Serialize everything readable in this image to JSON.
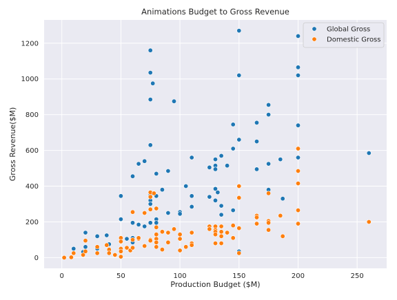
{
  "chart_data": {
    "type": "scatter",
    "title": "Animations Budget to Gross Revenue",
    "xlabel": "Production Budget ($M)",
    "ylabel": "Gross Revenue($M)",
    "xlim": [
      -15,
      275
    ],
    "ylim": [
      -60,
      1330
    ],
    "xticks": [
      0,
      50,
      100,
      150,
      200,
      250
    ],
    "yticks": [
      0,
      200,
      400,
      600,
      800,
      1000,
      1200
    ],
    "grid": true,
    "legend_position": "top-right",
    "series": [
      {
        "name": "Global Gross",
        "color": "#1f77b4",
        "points": [
          [
            10,
            50
          ],
          [
            18,
            32
          ],
          [
            20,
            140
          ],
          [
            20,
            60
          ],
          [
            30,
            120
          ],
          [
            30,
            50
          ],
          [
            38,
            125
          ],
          [
            40,
            75
          ],
          [
            50,
            345
          ],
          [
            50,
            215
          ],
          [
            55,
            105
          ],
          [
            60,
            455
          ],
          [
            60,
            195
          ],
          [
            60,
            110
          ],
          [
            60,
            85
          ],
          [
            65,
            525
          ],
          [
            65,
            185
          ],
          [
            70,
            540
          ],
          [
            70,
            175
          ],
          [
            75,
            1160
          ],
          [
            75,
            1035
          ],
          [
            75,
            885
          ],
          [
            75,
            630
          ],
          [
            75,
            350
          ],
          [
            75,
            320
          ],
          [
            75,
            300
          ],
          [
            75,
            270
          ],
          [
            75,
            195
          ],
          [
            77,
            975
          ],
          [
            80,
            470
          ],
          [
            80,
            345
          ],
          [
            80,
            275
          ],
          [
            80,
            215
          ],
          [
            80,
            195
          ],
          [
            85,
            380
          ],
          [
            90,
            485
          ],
          [
            90,
            250
          ],
          [
            95,
            875
          ],
          [
            100,
            255
          ],
          [
            100,
            245
          ],
          [
            105,
            400
          ],
          [
            110,
            560
          ],
          [
            110,
            345
          ],
          [
            110,
            285
          ],
          [
            125,
            505
          ],
          [
            125,
            340
          ],
          [
            130,
            550
          ],
          [
            130,
            515
          ],
          [
            130,
            495
          ],
          [
            130,
            385
          ],
          [
            130,
            320
          ],
          [
            130,
            155
          ],
          [
            130,
            130
          ],
          [
            132,
            365
          ],
          [
            135,
            570
          ],
          [
            135,
            290
          ],
          [
            135,
            240
          ],
          [
            140,
            515
          ],
          [
            145,
            745
          ],
          [
            145,
            610
          ],
          [
            145,
            265
          ],
          [
            150,
            1270
          ],
          [
            150,
            1020
          ],
          [
            150,
            660
          ],
          [
            150,
            35
          ],
          [
            165,
            755
          ],
          [
            165,
            650
          ],
          [
            165,
            495
          ],
          [
            175,
            855
          ],
          [
            175,
            800
          ],
          [
            175,
            525
          ],
          [
            175,
            380
          ],
          [
            185,
            550
          ],
          [
            187,
            330
          ],
          [
            200,
            1240
          ],
          [
            200,
            1065
          ],
          [
            200,
            1020
          ],
          [
            200,
            740
          ],
          [
            200,
            560
          ],
          [
            260,
            585
          ]
        ]
      },
      {
        "name": "Domestic Gross",
        "color": "#ff7f0e",
        "points": [
          [
            2,
            0
          ],
          [
            8,
            2
          ],
          [
            10,
            25
          ],
          [
            18,
            15
          ],
          [
            20,
            95
          ],
          [
            20,
            35
          ],
          [
            30,
            60
          ],
          [
            30,
            25
          ],
          [
            38,
            70
          ],
          [
            40,
            45
          ],
          [
            40,
            25
          ],
          [
            45,
            15
          ],
          [
            50,
            110
          ],
          [
            50,
            90
          ],
          [
            50,
            50
          ],
          [
            50,
            35
          ],
          [
            50,
            5
          ],
          [
            55,
            55
          ],
          [
            58,
            40
          ],
          [
            60,
            255
          ],
          [
            60,
            100
          ],
          [
            60,
            55
          ],
          [
            65,
            105
          ],
          [
            65,
            110
          ],
          [
            70,
            250
          ],
          [
            70,
            65
          ],
          [
            75,
            365
          ],
          [
            75,
            340
          ],
          [
            75,
            270
          ],
          [
            75,
            100
          ],
          [
            75,
            95
          ],
          [
            78,
            360
          ],
          [
            80,
            275
          ],
          [
            80,
            170
          ],
          [
            80,
            130
          ],
          [
            80,
            105
          ],
          [
            80,
            85
          ],
          [
            80,
            60
          ],
          [
            85,
            145
          ],
          [
            85,
            45
          ],
          [
            90,
            140
          ],
          [
            90,
            85
          ],
          [
            95,
            160
          ],
          [
            100,
            130
          ],
          [
            100,
            105
          ],
          [
            100,
            40
          ],
          [
            105,
            60
          ],
          [
            110,
            140
          ],
          [
            110,
            80
          ],
          [
            110,
            70
          ],
          [
            125,
            175
          ],
          [
            125,
            160
          ],
          [
            130,
            175
          ],
          [
            130,
            155
          ],
          [
            130,
            145
          ],
          [
            130,
            130
          ],
          [
            130,
            80
          ],
          [
            135,
            175
          ],
          [
            135,
            145
          ],
          [
            135,
            120
          ],
          [
            135,
            80
          ],
          [
            140,
            140
          ],
          [
            145,
            180
          ],
          [
            145,
            110
          ],
          [
            150,
            400
          ],
          [
            150,
            335
          ],
          [
            150,
            165
          ],
          [
            150,
            25
          ],
          [
            165,
            235
          ],
          [
            165,
            225
          ],
          [
            165,
            190
          ],
          [
            175,
            360
          ],
          [
            175,
            205
          ],
          [
            175,
            195
          ],
          [
            175,
            155
          ],
          [
            185,
            235
          ],
          [
            187,
            120
          ],
          [
            200,
            610
          ],
          [
            200,
            485
          ],
          [
            200,
            415
          ],
          [
            200,
            265
          ],
          [
            200,
            190
          ],
          [
            260,
            200
          ]
        ]
      }
    ]
  }
}
